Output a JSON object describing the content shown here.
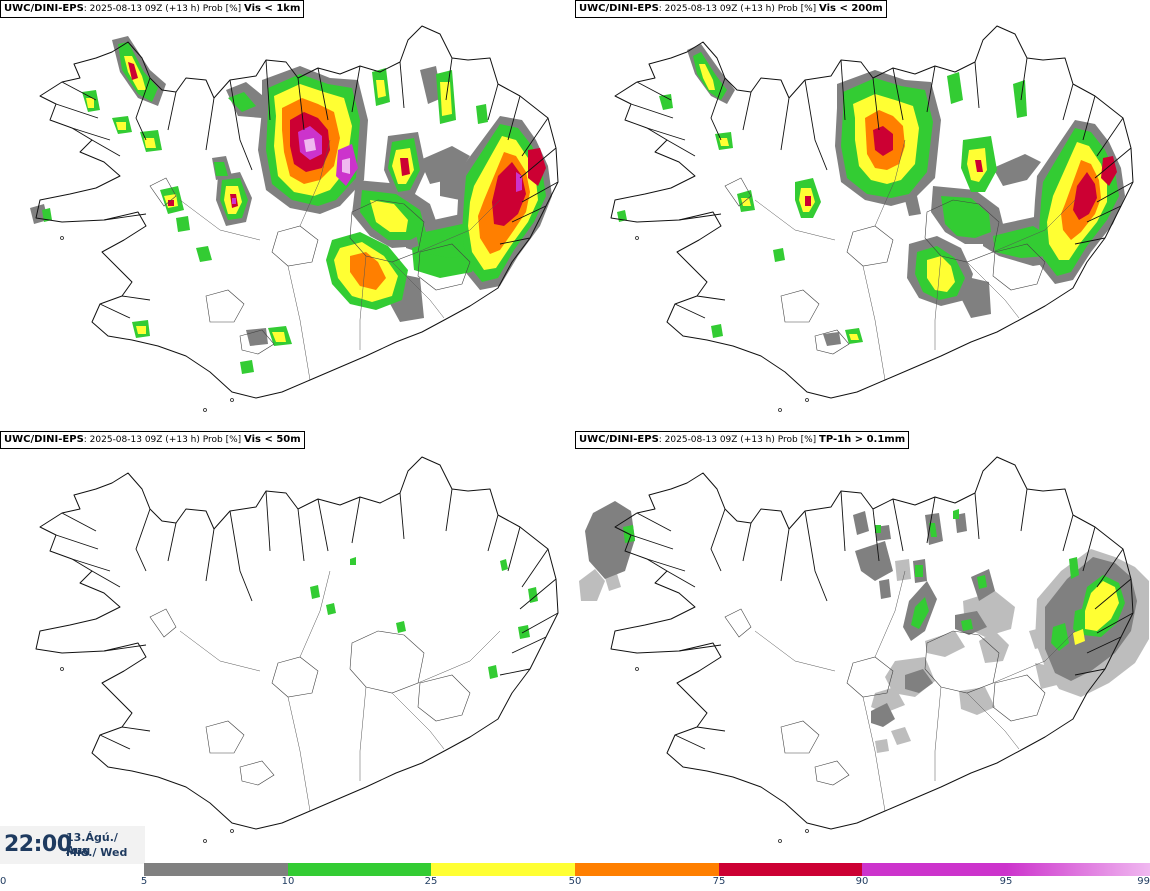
{
  "panels": [
    {
      "model": "UWC/DINI-EPS",
      "meta": ": 2025-08-13 09Z (+13 h) Prob [%]",
      "variable": "Vis < 1km",
      "level": "high"
    },
    {
      "model": "UWC/DINI-EPS",
      "meta": ": 2025-08-13 09Z (+13 h) Prob [%]",
      "variable": "Vis < 200m",
      "level": "medium"
    },
    {
      "model": "UWC/DINI-EPS",
      "meta": ": 2025-08-13 09Z (+13 h) Prob [%]",
      "variable": "Vis < 50m",
      "level": "low"
    },
    {
      "model": "UWC/DINI-EPS",
      "meta": ": 2025-08-13 09Z (+13 h) Prob [%]",
      "variable": "TP-1h > 0.1mm",
      "level": "precip"
    }
  ],
  "valid_time": {
    "time": "22:00",
    "date_line1": "13.Ágú./ Aug",
    "date_line2": "Mið./ Wed"
  },
  "legend": {
    "ticks": [
      "0",
      "5",
      "10",
      "25",
      "50",
      "75",
      "90",
      "95",
      "99"
    ],
    "colors": [
      "#bdbdbd",
      "#808080",
      "#33cc33",
      "#ffff33",
      "#ff7f00",
      "#cc0033",
      "#cc33cc",
      "#f0b8f0"
    ]
  }
}
